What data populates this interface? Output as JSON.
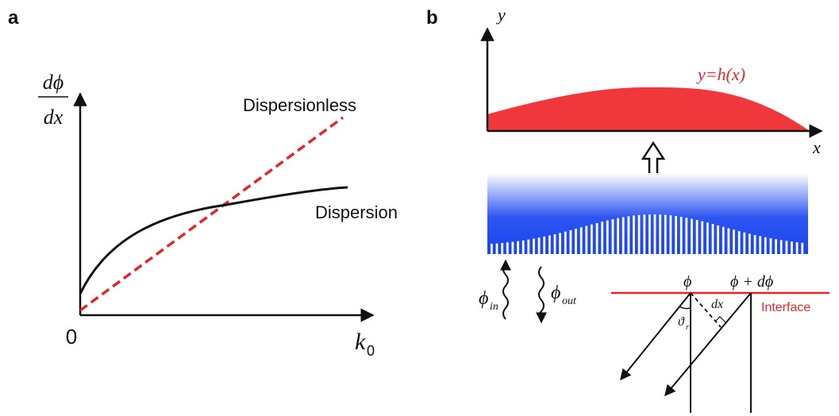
{
  "panel_a": {
    "letter": "a",
    "y_label_num": "dϕ",
    "y_label_den": "dx",
    "origin": "0",
    "x_label": "k",
    "x_label_sub": "0",
    "dispersionless_label": "Dispersionless",
    "dispersion_label": "Dispersion",
    "colors": {
      "dispersionless": "#e3262b",
      "dispersion": "#111111"
    }
  },
  "panel_b": {
    "letter": "b",
    "y_axis": "y",
    "x_axis": "x",
    "profile_label": "y=h(x)",
    "phi_in": "ϕ",
    "phi_in_sub": "in",
    "phi_out": "ϕ",
    "phi_out_sub": "out",
    "phi": "ϕ",
    "phi_plus": "ϕ + dϕ",
    "dx": "dx",
    "theta": "ϑ",
    "theta_sub": "r",
    "interface": "Interface",
    "colors": {
      "profile": "#f0373b",
      "interface": "#e3262b",
      "gradient": "#1b45ef"
    }
  }
}
